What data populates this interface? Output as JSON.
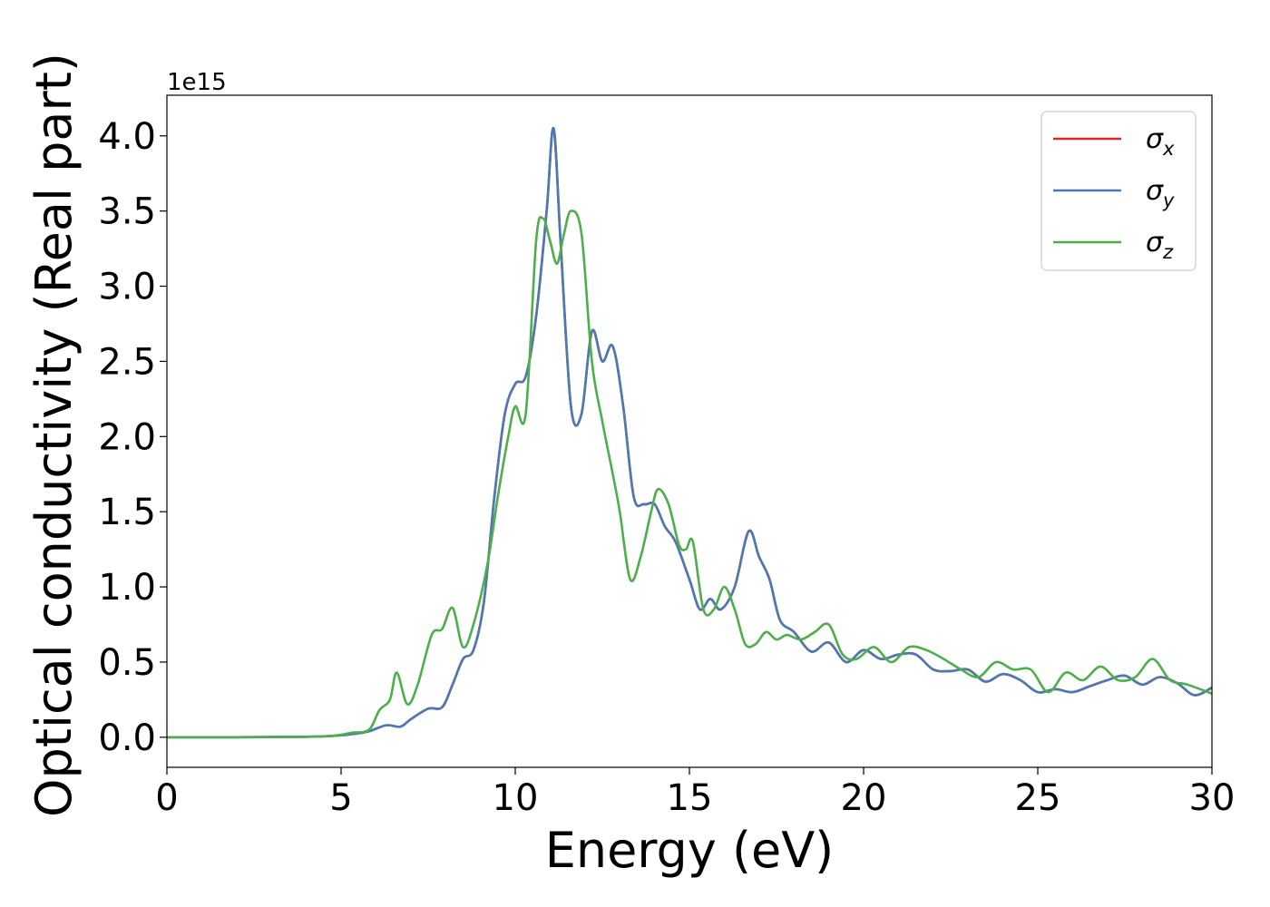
{
  "chart_data": {
    "type": "line",
    "title": "",
    "xlabel": "Energy (eV)",
    "ylabel": "Optical conductivity (Real part)",
    "y_offset_label": "1e15",
    "xlim": [
      0,
      30
    ],
    "ylim": [
      -0.2,
      4.27
    ],
    "xticks": [
      0,
      5,
      10,
      15,
      20,
      25,
      30
    ],
    "xtick_labels": [
      "0",
      "5",
      "10",
      "15",
      "20",
      "25",
      "30"
    ],
    "yticks": [
      0.0,
      0.5,
      1.0,
      1.5,
      2.0,
      2.5,
      3.0,
      3.5,
      4.0
    ],
    "ytick_labels": [
      "0.0",
      "0.5",
      "1.0",
      "1.5",
      "2.0",
      "2.5",
      "3.0",
      "3.5",
      "4.0"
    ],
    "grid": false,
    "legend_position": "top-right",
    "series": [
      {
        "name": "σx",
        "symbol": "σ",
        "subscript": "x",
        "color": "#d62728",
        "x": [
          0,
          2,
          4,
          4.8,
          5.3,
          5.8,
          6.3,
          6.7,
          7.0,
          7.5,
          7.9,
          8.2,
          8.5,
          8.8,
          9.1,
          9.4,
          9.7,
          10.0,
          10.3,
          10.6,
          10.9,
          11.1,
          11.3,
          11.6,
          11.9,
          12.2,
          12.5,
          12.8,
          13.1,
          13.4,
          13.7,
          14.0,
          14.3,
          14.6,
          15.0,
          15.3,
          15.6,
          15.9,
          16.3,
          16.7,
          17.0,
          17.3,
          17.6,
          18.0,
          18.5,
          19.0,
          19.5,
          20.0,
          20.5,
          21.0,
          21.5,
          22.0,
          22.5,
          23.0,
          23.5,
          24.0,
          24.5,
          25.0,
          25.5,
          26.0,
          26.5,
          27.0,
          27.5,
          28.0,
          28.5,
          29.0,
          29.5,
          30.0
        ],
        "y": [
          0,
          0,
          0.003,
          0.01,
          0.02,
          0.04,
          0.08,
          0.07,
          0.12,
          0.19,
          0.2,
          0.35,
          0.52,
          0.58,
          0.9,
          1.6,
          2.15,
          2.35,
          2.4,
          2.8,
          3.5,
          4.05,
          3.3,
          2.2,
          2.15,
          2.7,
          2.5,
          2.6,
          2.2,
          1.6,
          1.55,
          1.55,
          1.4,
          1.3,
          1.05,
          0.85,
          0.92,
          0.85,
          1.0,
          1.37,
          1.2,
          1.05,
          0.78,
          0.7,
          0.57,
          0.63,
          0.5,
          0.58,
          0.52,
          0.55,
          0.55,
          0.45,
          0.44,
          0.45,
          0.37,
          0.42,
          0.38,
          0.3,
          0.32,
          0.3,
          0.34,
          0.38,
          0.41,
          0.35,
          0.4,
          0.36,
          0.28,
          0.33
        ]
      },
      {
        "name": "σy",
        "symbol": "σ",
        "subscript": "y",
        "color": "#4a7ab5",
        "x": [
          0,
          2,
          4,
          4.8,
          5.3,
          5.8,
          6.3,
          6.7,
          7.0,
          7.5,
          7.9,
          8.2,
          8.5,
          8.8,
          9.1,
          9.4,
          9.7,
          10.0,
          10.3,
          10.6,
          10.9,
          11.1,
          11.3,
          11.6,
          11.9,
          12.2,
          12.5,
          12.8,
          13.1,
          13.4,
          13.7,
          14.0,
          14.3,
          14.6,
          15.0,
          15.3,
          15.6,
          15.9,
          16.3,
          16.7,
          17.0,
          17.3,
          17.6,
          18.0,
          18.5,
          19.0,
          19.5,
          20.0,
          20.5,
          21.0,
          21.5,
          22.0,
          22.5,
          23.0,
          23.5,
          24.0,
          24.5,
          25.0,
          25.5,
          26.0,
          26.5,
          27.0,
          27.5,
          28.0,
          28.5,
          29.0,
          29.5,
          30.0
        ],
        "y": [
          0,
          0,
          0.003,
          0.01,
          0.02,
          0.04,
          0.08,
          0.07,
          0.12,
          0.19,
          0.2,
          0.35,
          0.52,
          0.58,
          0.9,
          1.6,
          2.15,
          2.35,
          2.4,
          2.8,
          3.5,
          4.05,
          3.3,
          2.2,
          2.15,
          2.7,
          2.5,
          2.6,
          2.2,
          1.6,
          1.55,
          1.55,
          1.4,
          1.3,
          1.05,
          0.85,
          0.92,
          0.85,
          1.0,
          1.37,
          1.2,
          1.05,
          0.78,
          0.7,
          0.57,
          0.63,
          0.5,
          0.58,
          0.52,
          0.55,
          0.55,
          0.45,
          0.44,
          0.45,
          0.37,
          0.42,
          0.38,
          0.3,
          0.32,
          0.3,
          0.34,
          0.38,
          0.41,
          0.35,
          0.4,
          0.36,
          0.28,
          0.33
        ]
      },
      {
        "name": "σz",
        "symbol": "σ",
        "subscript": "z",
        "color": "#4daf4a",
        "x": [
          0,
          2,
          4,
          4.8,
          5.3,
          5.8,
          6.1,
          6.4,
          6.6,
          6.9,
          7.2,
          7.6,
          7.9,
          8.2,
          8.5,
          8.8,
          9.2,
          9.5,
          9.8,
          10.0,
          10.3,
          10.6,
          10.8,
          11.0,
          11.2,
          11.4,
          11.6,
          11.9,
          12.2,
          12.5,
          12.8,
          13.0,
          13.3,
          13.6,
          13.9,
          14.1,
          14.4,
          14.7,
          14.9,
          15.1,
          15.4,
          15.7,
          16.0,
          16.3,
          16.6,
          16.9,
          17.2,
          17.5,
          17.8,
          18.2,
          18.6,
          19.0,
          19.4,
          19.8,
          20.3,
          20.8,
          21.3,
          21.8,
          22.3,
          22.8,
          23.3,
          23.8,
          24.3,
          24.8,
          25.3,
          25.8,
          26.3,
          26.8,
          27.3,
          27.8,
          28.3,
          28.8,
          29.3,
          30.0
        ],
        "y": [
          0,
          0,
          0.003,
          0.01,
          0.03,
          0.05,
          0.18,
          0.25,
          0.43,
          0.22,
          0.35,
          0.68,
          0.72,
          0.86,
          0.6,
          0.75,
          1.15,
          1.6,
          2.0,
          2.2,
          2.15,
          3.3,
          3.45,
          3.3,
          3.15,
          3.35,
          3.5,
          3.35,
          2.5,
          2.1,
          1.75,
          1.5,
          1.05,
          1.2,
          1.5,
          1.65,
          1.55,
          1.28,
          1.25,
          1.3,
          0.85,
          0.85,
          1.0,
          0.85,
          0.62,
          0.62,
          0.7,
          0.65,
          0.68,
          0.65,
          0.7,
          0.75,
          0.55,
          0.52,
          0.6,
          0.5,
          0.6,
          0.58,
          0.52,
          0.45,
          0.4,
          0.5,
          0.45,
          0.45,
          0.3,
          0.43,
          0.38,
          0.47,
          0.38,
          0.4,
          0.52,
          0.38,
          0.35,
          0.29
        ]
      }
    ]
  }
}
